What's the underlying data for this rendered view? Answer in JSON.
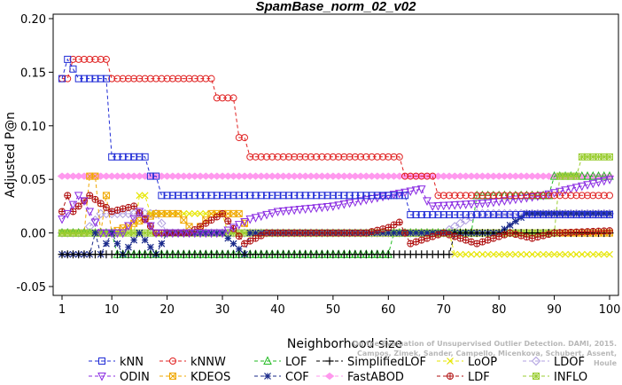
{
  "chart_data": {
    "type": "line",
    "title": "SpamBase_norm_02_v02",
    "xlabel": "Neighborhood size",
    "ylabel": "Adjusted P@n",
    "xlim": [
      1,
      100
    ],
    "ylim": [
      -0.05,
      0.2
    ],
    "xticks": [
      1,
      10,
      20,
      30,
      40,
      50,
      60,
      70,
      80,
      90,
      100
    ],
    "yticks": [
      -0.05,
      0.0,
      0.05,
      0.1,
      0.15,
      0.2
    ],
    "ytick_labels": [
      "-0.05",
      "0.00",
      "0.05",
      "0.10",
      "0.15",
      "0.20"
    ],
    "legend_position": "bottom",
    "series": [
      {
        "name": "kNN",
        "color": "#1f2bd6",
        "marker": "square",
        "segments": [
          [
            1,
            0.144
          ],
          [
            2,
            0.162
          ],
          [
            4,
            0.144
          ],
          [
            9,
            0.144
          ],
          [
            10,
            0.071
          ],
          [
            16,
            0.071
          ],
          [
            17,
            0.053
          ],
          [
            18,
            0.053
          ],
          [
            19,
            0.035
          ],
          [
            62,
            0.035
          ],
          [
            63,
            0.035
          ],
          [
            64,
            0.017
          ],
          [
            100,
            0.017
          ]
        ]
      },
      {
        "name": "kNNW",
        "color": "#e02020",
        "marker": "circle",
        "segments": [
          [
            1,
            0.144
          ],
          [
            2,
            0.144
          ],
          [
            3,
            0.162
          ],
          [
            9,
            0.162
          ],
          [
            10,
            0.144
          ],
          [
            28,
            0.144
          ],
          [
            29,
            0.126
          ],
          [
            32,
            0.126
          ],
          [
            33,
            0.089
          ],
          [
            34,
            0.089
          ],
          [
            35,
            0.071
          ],
          [
            62,
            0.071
          ],
          [
            63,
            0.053
          ],
          [
            68,
            0.053
          ],
          [
            69,
            0.035
          ],
          [
            100,
            0.035
          ]
        ]
      },
      {
        "name": "LOF",
        "color": "#22bb22",
        "marker": "triangle-up",
        "segments": [
          [
            1,
            0.0
          ],
          [
            10,
            0.0
          ],
          [
            11,
            -0.02
          ],
          [
            60,
            -0.02
          ],
          [
            61,
            0.0
          ],
          [
            75,
            0.0
          ],
          [
            76,
            0.035
          ],
          [
            89,
            0.035
          ],
          [
            90,
            0.053
          ],
          [
            100,
            0.053
          ]
        ]
      },
      {
        "name": "SimplifiedLOF",
        "color": "#000000",
        "marker": "plus",
        "segments": [
          [
            1,
            -0.02
          ],
          [
            71,
            -0.02
          ],
          [
            72,
            0.0
          ],
          [
            100,
            0.0
          ]
        ]
      },
      {
        "name": "LoOP",
        "color": "#e6e600",
        "marker": "x",
        "segments": [
          [
            1,
            0.0
          ],
          [
            14,
            0.0
          ],
          [
            15,
            0.035
          ],
          [
            16,
            0.035
          ],
          [
            17,
            0.018
          ],
          [
            30,
            0.018
          ],
          [
            31,
            0.0
          ],
          [
            70,
            0.0
          ],
          [
            71,
            0.0
          ],
          [
            72,
            -0.02
          ],
          [
            100,
            -0.02
          ]
        ]
      },
      {
        "name": "LDOF",
        "color": "#b0a0e0",
        "marker": "diamond",
        "segments": [
          [
            1,
            0.0
          ],
          [
            5,
            0.0
          ],
          [
            8,
            0.018
          ],
          [
            18,
            0.018
          ],
          [
            20,
            0.0
          ],
          [
            70,
            0.0
          ],
          [
            76,
            0.018
          ],
          [
            100,
            0.018
          ]
        ]
      },
      {
        "name": "ODIN",
        "color": "#8a2be2",
        "marker": "triangle-down",
        "segments": [
          [
            1,
            0.013
          ],
          [
            2,
            0.018
          ],
          [
            4,
            0.035
          ],
          [
            5,
            0.03
          ],
          [
            8,
            0.0
          ],
          [
            12,
            0.0
          ],
          [
            15,
            0.02
          ],
          [
            18,
            0.0
          ],
          [
            25,
            0.0
          ],
          [
            30,
            0.0
          ],
          [
            35,
            0.013
          ],
          [
            40,
            0.02
          ],
          [
            50,
            0.025
          ],
          [
            60,
            0.035
          ],
          [
            66,
            0.041
          ],
          [
            67,
            0.03
          ],
          [
            68,
            0.025
          ],
          [
            78,
            0.028
          ],
          [
            88,
            0.035
          ],
          [
            92,
            0.04
          ],
          [
            100,
            0.05
          ]
        ]
      },
      {
        "name": "KDEOS",
        "color": "#f0a800",
        "marker": "square-x",
        "segments": [
          [
            1,
            0.0
          ],
          [
            5,
            0.0
          ],
          [
            6,
            0.053
          ],
          [
            7,
            0.053
          ],
          [
            8,
            0.0
          ],
          [
            9,
            0.035
          ],
          [
            10,
            0.0
          ],
          [
            18,
            0.018
          ],
          [
            22,
            0.018
          ],
          [
            25,
            0.0
          ],
          [
            28,
            0.018
          ],
          [
            33,
            0.018
          ],
          [
            35,
            0.0
          ],
          [
            90,
            0.0
          ],
          [
            91,
            0.0
          ],
          [
            100,
            0.0
          ]
        ]
      },
      {
        "name": "COF",
        "color": "#1a2a8a",
        "marker": "asterisk",
        "segments": [
          [
            1,
            -0.02
          ],
          [
            6,
            -0.02
          ],
          [
            7,
            0.0
          ],
          [
            8,
            -0.02
          ],
          [
            10,
            0.0
          ],
          [
            12,
            -0.02
          ],
          [
            15,
            0.0
          ],
          [
            18,
            -0.02
          ],
          [
            20,
            0.0
          ],
          [
            30,
            0.0
          ],
          [
            34,
            -0.02
          ],
          [
            35,
            0.0
          ],
          [
            75,
            0.0
          ],
          [
            80,
            0.0
          ],
          [
            85,
            0.018
          ],
          [
            90,
            0.018
          ],
          [
            100,
            0.018
          ]
        ]
      },
      {
        "name": "FastABOD",
        "color": "#ff99ee",
        "marker": "diamond-filled",
        "segments": [
          [
            1,
            0.053
          ],
          [
            100,
            0.053
          ]
        ]
      },
      {
        "name": "LDF",
        "color": "#b01010",
        "marker": "circle-plus",
        "segments": [
          [
            1,
            0.02
          ],
          [
            2,
            0.035
          ],
          [
            3,
            0.02
          ],
          [
            6,
            0.035
          ],
          [
            10,
            0.02
          ],
          [
            14,
            0.025
          ],
          [
            18,
            0.0
          ],
          [
            24,
            0.0
          ],
          [
            30,
            0.018
          ],
          [
            34,
            -0.01
          ],
          [
            38,
            0.0
          ],
          [
            46,
            0.0
          ],
          [
            56,
            0.0
          ],
          [
            60,
            0.005
          ],
          [
            62,
            0.01
          ],
          [
            64,
            -0.01
          ],
          [
            70,
            0.0
          ],
          [
            76,
            -0.01
          ],
          [
            82,
            0.0
          ],
          [
            86,
            -0.005
          ],
          [
            90,
            0.0
          ],
          [
            100,
            0.002
          ]
        ]
      },
      {
        "name": "INFLO",
        "color": "#9acd32",
        "marker": "square-star",
        "segments": [
          [
            1,
            0.0
          ],
          [
            90,
            0.0
          ],
          [
            91,
            0.053
          ],
          [
            94,
            0.053
          ],
          [
            95,
            0.071
          ],
          [
            100,
            0.071
          ]
        ]
      }
    ]
  },
  "credit": {
    "line1": "Campos, Zimek, Sander, Campello, Micenkova, Schubert, Assent, Houle",
    "line2": "On the Evaluation of Unsupervised Outlier Detection. DAMI, 2015."
  }
}
